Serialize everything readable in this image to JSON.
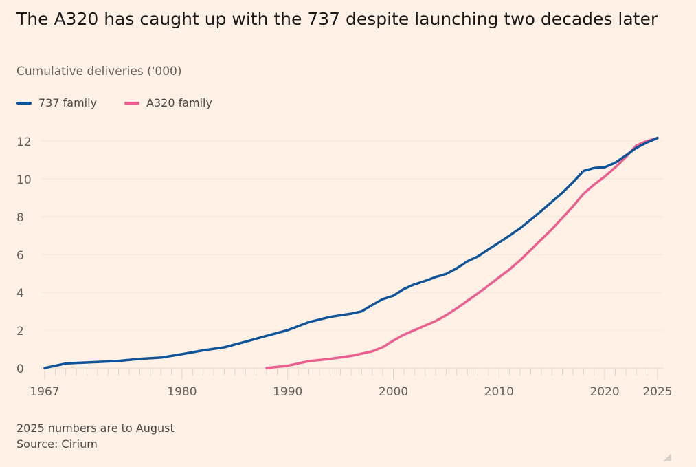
{
  "chart_data": {
    "type": "line",
    "title": "The A320 has caught up with the 737 despite launching two decades later",
    "subtitle": "Cumulative deliveries ('000)",
    "xlabel": "",
    "ylabel": "",
    "xlim": [
      1967,
      2025
    ],
    "ylim": [
      0,
      12
    ],
    "x_ticks": [
      1967,
      1980,
      1990,
      2000,
      2010,
      2020,
      2025
    ],
    "y_ticks": [
      0,
      2,
      4,
      6,
      8,
      10,
      12
    ],
    "grid": true,
    "legend": "top-left",
    "series": [
      {
        "name": "737 family",
        "color": "#0F5499",
        "x": [
          1967,
          1969,
          1970,
          1972,
          1974,
          1976,
          1978,
          1980,
          1982,
          1984,
          1986,
          1988,
          1990,
          1992,
          1994,
          1996,
          1997,
          1998,
          1999,
          2000,
          2001,
          2002,
          2003,
          2004,
          2005,
          2006,
          2007,
          2008,
          2009,
          2010,
          2011,
          2012,
          2013,
          2014,
          2015,
          2016,
          2017,
          2018,
          2019,
          2020,
          2021,
          2022,
          2023,
          2024,
          2025
        ],
        "y": [
          0,
          0.24,
          0.27,
          0.32,
          0.37,
          0.48,
          0.55,
          0.73,
          0.93,
          1.09,
          1.39,
          1.7,
          2.0,
          2.42,
          2.7,
          2.87,
          2.99,
          3.33,
          3.64,
          3.82,
          4.18,
          4.42,
          4.6,
          4.81,
          4.97,
          5.27,
          5.64,
          5.9,
          6.27,
          6.63,
          7.0,
          7.39,
          7.84,
          8.3,
          8.79,
          9.27,
          9.82,
          10.42,
          10.57,
          10.61,
          10.85,
          11.24,
          11.64,
          11.92,
          12.16
        ]
      },
      {
        "name": "A320 family",
        "color": "#EB5E8D",
        "x": [
          1988,
          1990,
          1992,
          1994,
          1996,
          1998,
          1999,
          2000,
          2001,
          2002,
          2003,
          2004,
          2005,
          2006,
          2007,
          2008,
          2009,
          2010,
          2011,
          2012,
          2013,
          2014,
          2015,
          2016,
          2017,
          2018,
          2019,
          2020,
          2021,
          2022,
          2023,
          2024,
          2025
        ],
        "y": [
          0,
          0.12,
          0.36,
          0.48,
          0.64,
          0.88,
          1.1,
          1.45,
          1.76,
          2.0,
          2.24,
          2.48,
          2.79,
          3.15,
          3.55,
          3.94,
          4.36,
          4.79,
          5.21,
          5.7,
          6.24,
          6.79,
          7.33,
          7.94,
          8.55,
          9.21,
          9.7,
          10.12,
          10.61,
          11.15,
          11.76,
          12.0,
          12.16
        ]
      }
    ]
  },
  "footer": {
    "note": "2025 numbers are to August",
    "source": "Source: Cirium"
  }
}
